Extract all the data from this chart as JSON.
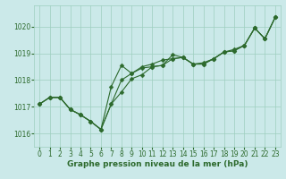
{
  "background_color": "#cbe9e9",
  "plot_bg_color": "#cbe9e9",
  "line_color": "#2d6a2d",
  "marker_color": "#2d6a2d",
  "grid_color": "#9ecfbf",
  "xlabel": "Graphe pression niveau de la mer (hPa)",
  "ylim": [
    1015.5,
    1020.8
  ],
  "yticks": [
    1016,
    1017,
    1018,
    1019,
    1020
  ],
  "xlim": [
    -0.5,
    23.5
  ],
  "xticks": [
    0,
    1,
    2,
    3,
    4,
    5,
    6,
    7,
    8,
    9,
    10,
    11,
    12,
    13,
    14,
    15,
    16,
    17,
    18,
    19,
    20,
    21,
    22,
    23
  ],
  "series": [
    [
      1017.1,
      1017.35,
      1017.35,
      1016.9,
      1016.7,
      1016.45,
      1016.15,
      1017.1,
      1017.55,
      1018.05,
      1018.2,
      1018.5,
      1018.55,
      1018.8,
      1018.85,
      1018.6,
      1018.6,
      1018.8,
      1019.05,
      1019.1,
      1019.3,
      1019.95,
      1019.55,
      1020.35
    ],
    [
      1017.1,
      1017.35,
      1017.35,
      1016.9,
      1016.7,
      1016.45,
      1016.15,
      1017.75,
      1018.55,
      1018.25,
      1018.5,
      1018.6,
      1018.75,
      1018.8,
      1018.85,
      1018.6,
      1018.6,
      1018.8,
      1019.05,
      1019.15,
      1019.3,
      1019.95,
      1019.55,
      1020.35
    ],
    [
      1017.1,
      1017.35,
      1017.35,
      1016.9,
      1016.7,
      1016.45,
      1016.15,
      1017.1,
      1018.0,
      1018.25,
      1018.45,
      1018.5,
      1018.55,
      1018.95,
      1018.85,
      1018.6,
      1018.65,
      1018.8,
      1019.05,
      1019.1,
      1019.3,
      1019.95,
      1019.55,
      1020.35
    ]
  ],
  "marker_size": 2.5,
  "line_width": 0.8,
  "tick_fontsize": 5.5,
  "label_fontsize": 6.5,
  "label_fontweight": "bold"
}
